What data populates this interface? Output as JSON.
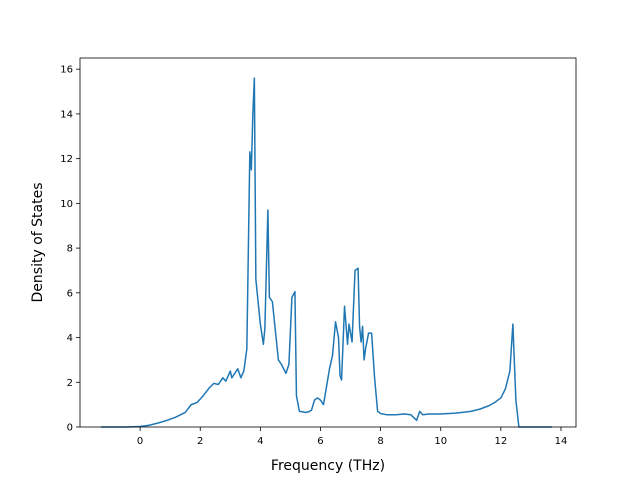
{
  "chart_data": {
    "type": "line",
    "title": "",
    "xlabel": "Frequency (THz)",
    "ylabel": "Density of States",
    "xlim": [
      -2.0,
      14.5
    ],
    "ylim": [
      0,
      16.5
    ],
    "xticks": [
      0,
      2,
      4,
      6,
      8,
      10,
      12,
      14
    ],
    "yticks": [
      0,
      2,
      4,
      6,
      8,
      10,
      12,
      14,
      16
    ],
    "grid": false,
    "line_color": "#1f77b4",
    "series": [
      {
        "x": [
          -1.3,
          -0.5,
          0.0,
          0.3,
          0.6,
          0.9,
          1.2,
          1.5,
          1.7,
          1.9,
          2.1,
          2.3,
          2.45,
          2.6,
          2.75,
          2.85,
          3.0,
          3.05,
          3.15,
          3.25,
          3.35,
          3.45,
          3.55,
          3.65,
          3.7,
          3.75,
          3.8,
          3.85,
          4.0,
          4.1,
          4.15,
          4.25,
          4.3,
          4.4,
          4.5,
          4.6,
          4.7,
          4.85,
          4.95,
          5.05,
          5.15,
          5.2,
          5.3,
          5.4,
          5.5,
          5.6,
          5.7,
          5.8,
          5.9,
          6.0,
          6.1,
          6.2,
          6.3,
          6.4,
          6.5,
          6.6,
          6.65,
          6.7,
          6.8,
          6.9,
          6.95,
          7.05,
          7.15,
          7.25,
          7.3,
          7.35,
          7.4,
          7.45,
          7.5,
          7.6,
          7.7,
          7.8,
          7.9,
          8.0,
          8.2,
          8.5,
          8.8,
          9.0,
          9.2,
          9.3,
          9.4,
          9.6,
          10.0,
          10.5,
          11.0,
          11.3,
          11.6,
          11.8,
          12.0,
          12.15,
          12.3,
          12.4,
          12.5,
          12.6,
          13.0,
          13.7
        ],
        "y": [
          0.0,
          0.0,
          0.02,
          0.08,
          0.18,
          0.3,
          0.45,
          0.65,
          1.0,
          1.1,
          1.4,
          1.75,
          1.95,
          1.9,
          2.2,
          2.05,
          2.5,
          2.2,
          2.4,
          2.6,
          2.2,
          2.5,
          3.5,
          12.3,
          11.5,
          14.0,
          15.6,
          6.6,
          4.6,
          3.7,
          4.4,
          9.7,
          5.8,
          5.6,
          4.3,
          3.0,
          2.8,
          2.4,
          2.8,
          5.8,
          6.05,
          1.4,
          0.7,
          0.68,
          0.65,
          0.68,
          0.75,
          1.2,
          1.3,
          1.2,
          1.0,
          1.8,
          2.6,
          3.2,
          4.7,
          4.0,
          2.3,
          2.1,
          5.4,
          3.7,
          4.6,
          3.8,
          7.0,
          7.1,
          4.5,
          3.8,
          4.5,
          3.0,
          3.5,
          4.2,
          4.2,
          2.2,
          0.7,
          0.6,
          0.55,
          0.55,
          0.58,
          0.55,
          0.3,
          0.7,
          0.55,
          0.58,
          0.58,
          0.62,
          0.7,
          0.8,
          0.95,
          1.1,
          1.3,
          1.7,
          2.5,
          4.6,
          1.2,
          0.0,
          0.0,
          0.0
        ]
      }
    ]
  }
}
